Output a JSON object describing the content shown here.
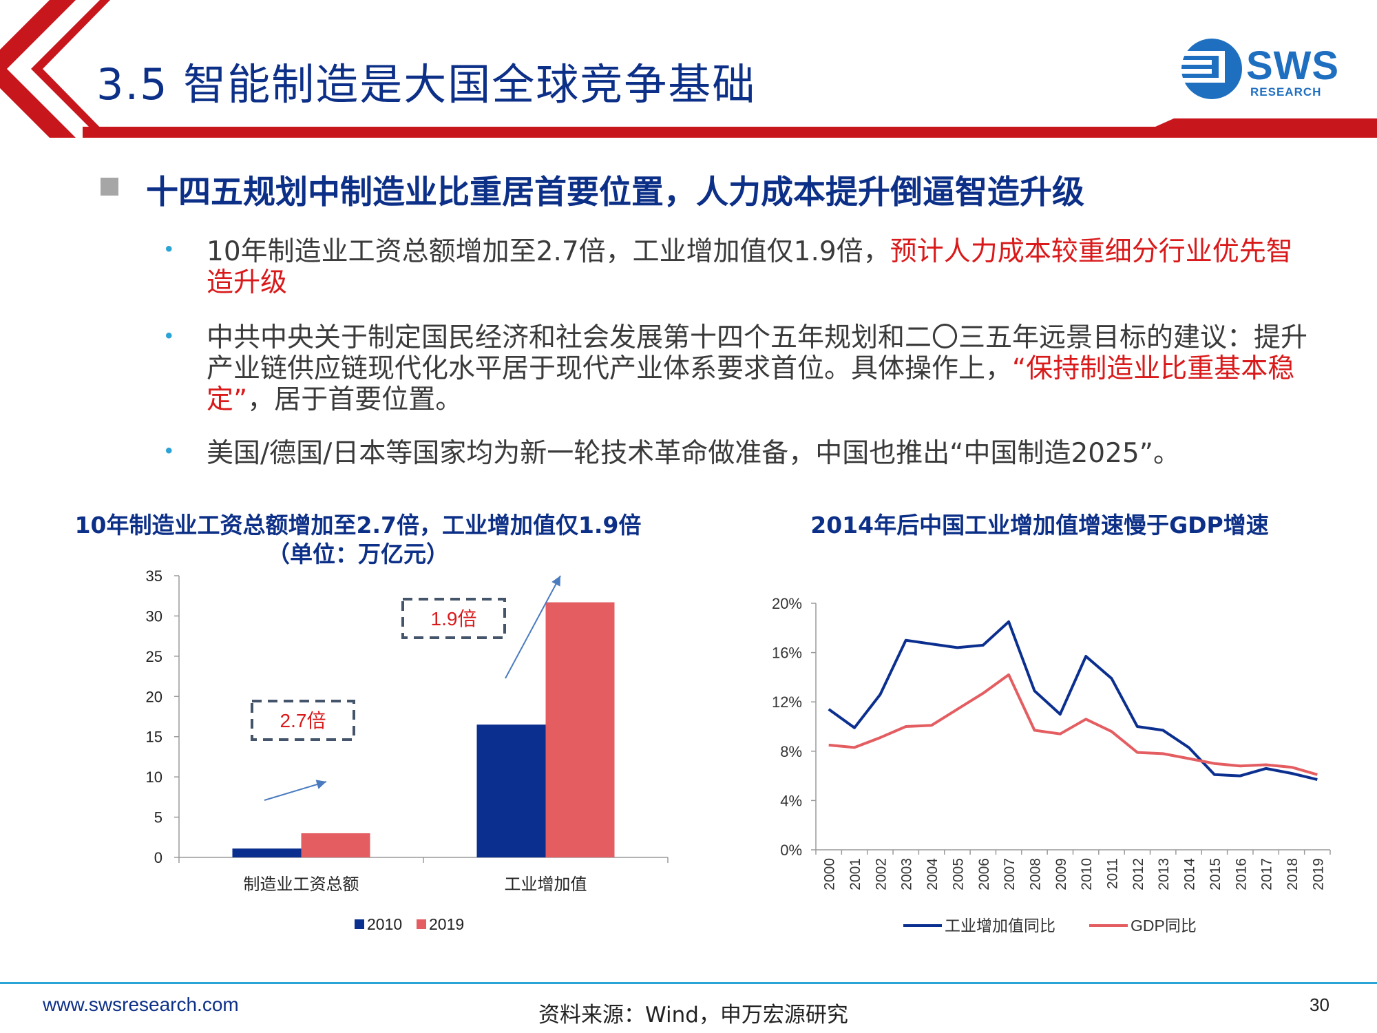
{
  "slide": {
    "title": "3.5 智能制造是大国全球竞争基础",
    "logo": {
      "text": "SWS",
      "subtext": "RESEARCH"
    },
    "section_heading": "十四五规划中制造业比重居首要位置，人力成本提升倒逼智造升级",
    "bullets": [
      {
        "parts": [
          {
            "text": "10年制造业工资总额增加至2.7倍，工业增加值仅1.9倍，",
            "highlight": false
          },
          {
            "text": "预计人力成本较重细分行业优先智造升级",
            "highlight": true
          }
        ]
      },
      {
        "parts": [
          {
            "text": "中共中央关于制定国民经济和社会发展第十四个五年规划和二〇三五年远景目标的建议：提升产业链供应链现代化水平居于现代产业体系要求首位。具体操作上，",
            "highlight": false
          },
          {
            "text": "“保持制造业比重基本稳定”",
            "highlight": true
          },
          {
            "text": "，居于首要位置。",
            "highlight": false
          }
        ]
      },
      {
        "parts": [
          {
            "text": "美国/德国/日本等国家均为新一轮技术革命做准备，中国也推出“中国制造2025”。",
            "highlight": false
          }
        ]
      }
    ],
    "footer": {
      "url": "www.swsresearch.com",
      "source": "资料来源：Wind，申万宏源研究",
      "page": "30"
    },
    "colors": {
      "brand_navy": "#0c2f87",
      "header_red": "#c8161d",
      "highlight_red": "#d9191a",
      "accent_blue": "#2aa3d6"
    }
  },
  "chart_data": [
    {
      "type": "bar",
      "title": "10年制造业工资总额增加至2.7倍，工业增加值仅1.9倍",
      "subtitle": "（单位：万亿元）",
      "categories": [
        "制造业工资总额",
        "工业增加值"
      ],
      "series": [
        {
          "name": "2010",
          "color": "#0b2f8f",
          "values": [
            1.1,
            16.5
          ]
        },
        {
          "name": "2019",
          "color": "#e35d61",
          "values": [
            3.0,
            31.7
          ]
        }
      ],
      "ylim": [
        0,
        35
      ],
      "yticks": [
        0,
        5,
        10,
        15,
        20,
        25,
        30,
        35
      ],
      "annotations": [
        "2.7倍",
        "1.9倍"
      ],
      "legend": "bottom"
    },
    {
      "type": "line",
      "title": "2014年后中国工业增加值增速慢于GDP增速",
      "x": [
        "2000",
        "2001",
        "2002",
        "2003",
        "2004",
        "2005",
        "2006",
        "2007",
        "2008",
        "2009",
        "2010",
        "2011",
        "2012",
        "2013",
        "2014",
        "2015",
        "2016",
        "2017",
        "2018",
        "2019"
      ],
      "series": [
        {
          "name": "工业增加值同比",
          "color": "#0b2f8f",
          "values": [
            11.4,
            9.9,
            12.6,
            17.0,
            16.7,
            16.4,
            16.6,
            18.5,
            12.9,
            11.0,
            15.7,
            13.9,
            10.0,
            9.7,
            8.3,
            6.1,
            6.0,
            6.6,
            6.2,
            5.7
          ]
        },
        {
          "name": "GDP同比",
          "color": "#e35d61",
          "values": [
            8.5,
            8.3,
            9.1,
            10.0,
            10.1,
            11.4,
            12.7,
            14.2,
            9.7,
            9.4,
            10.6,
            9.6,
            7.9,
            7.8,
            7.4,
            7.0,
            6.8,
            6.9,
            6.7,
            6.1
          ]
        }
      ],
      "ylim": [
        0,
        20
      ],
      "yticks": [
        "0%",
        "4%",
        "8%",
        "12%",
        "16%",
        "20%"
      ],
      "legend": "bottom"
    }
  ]
}
